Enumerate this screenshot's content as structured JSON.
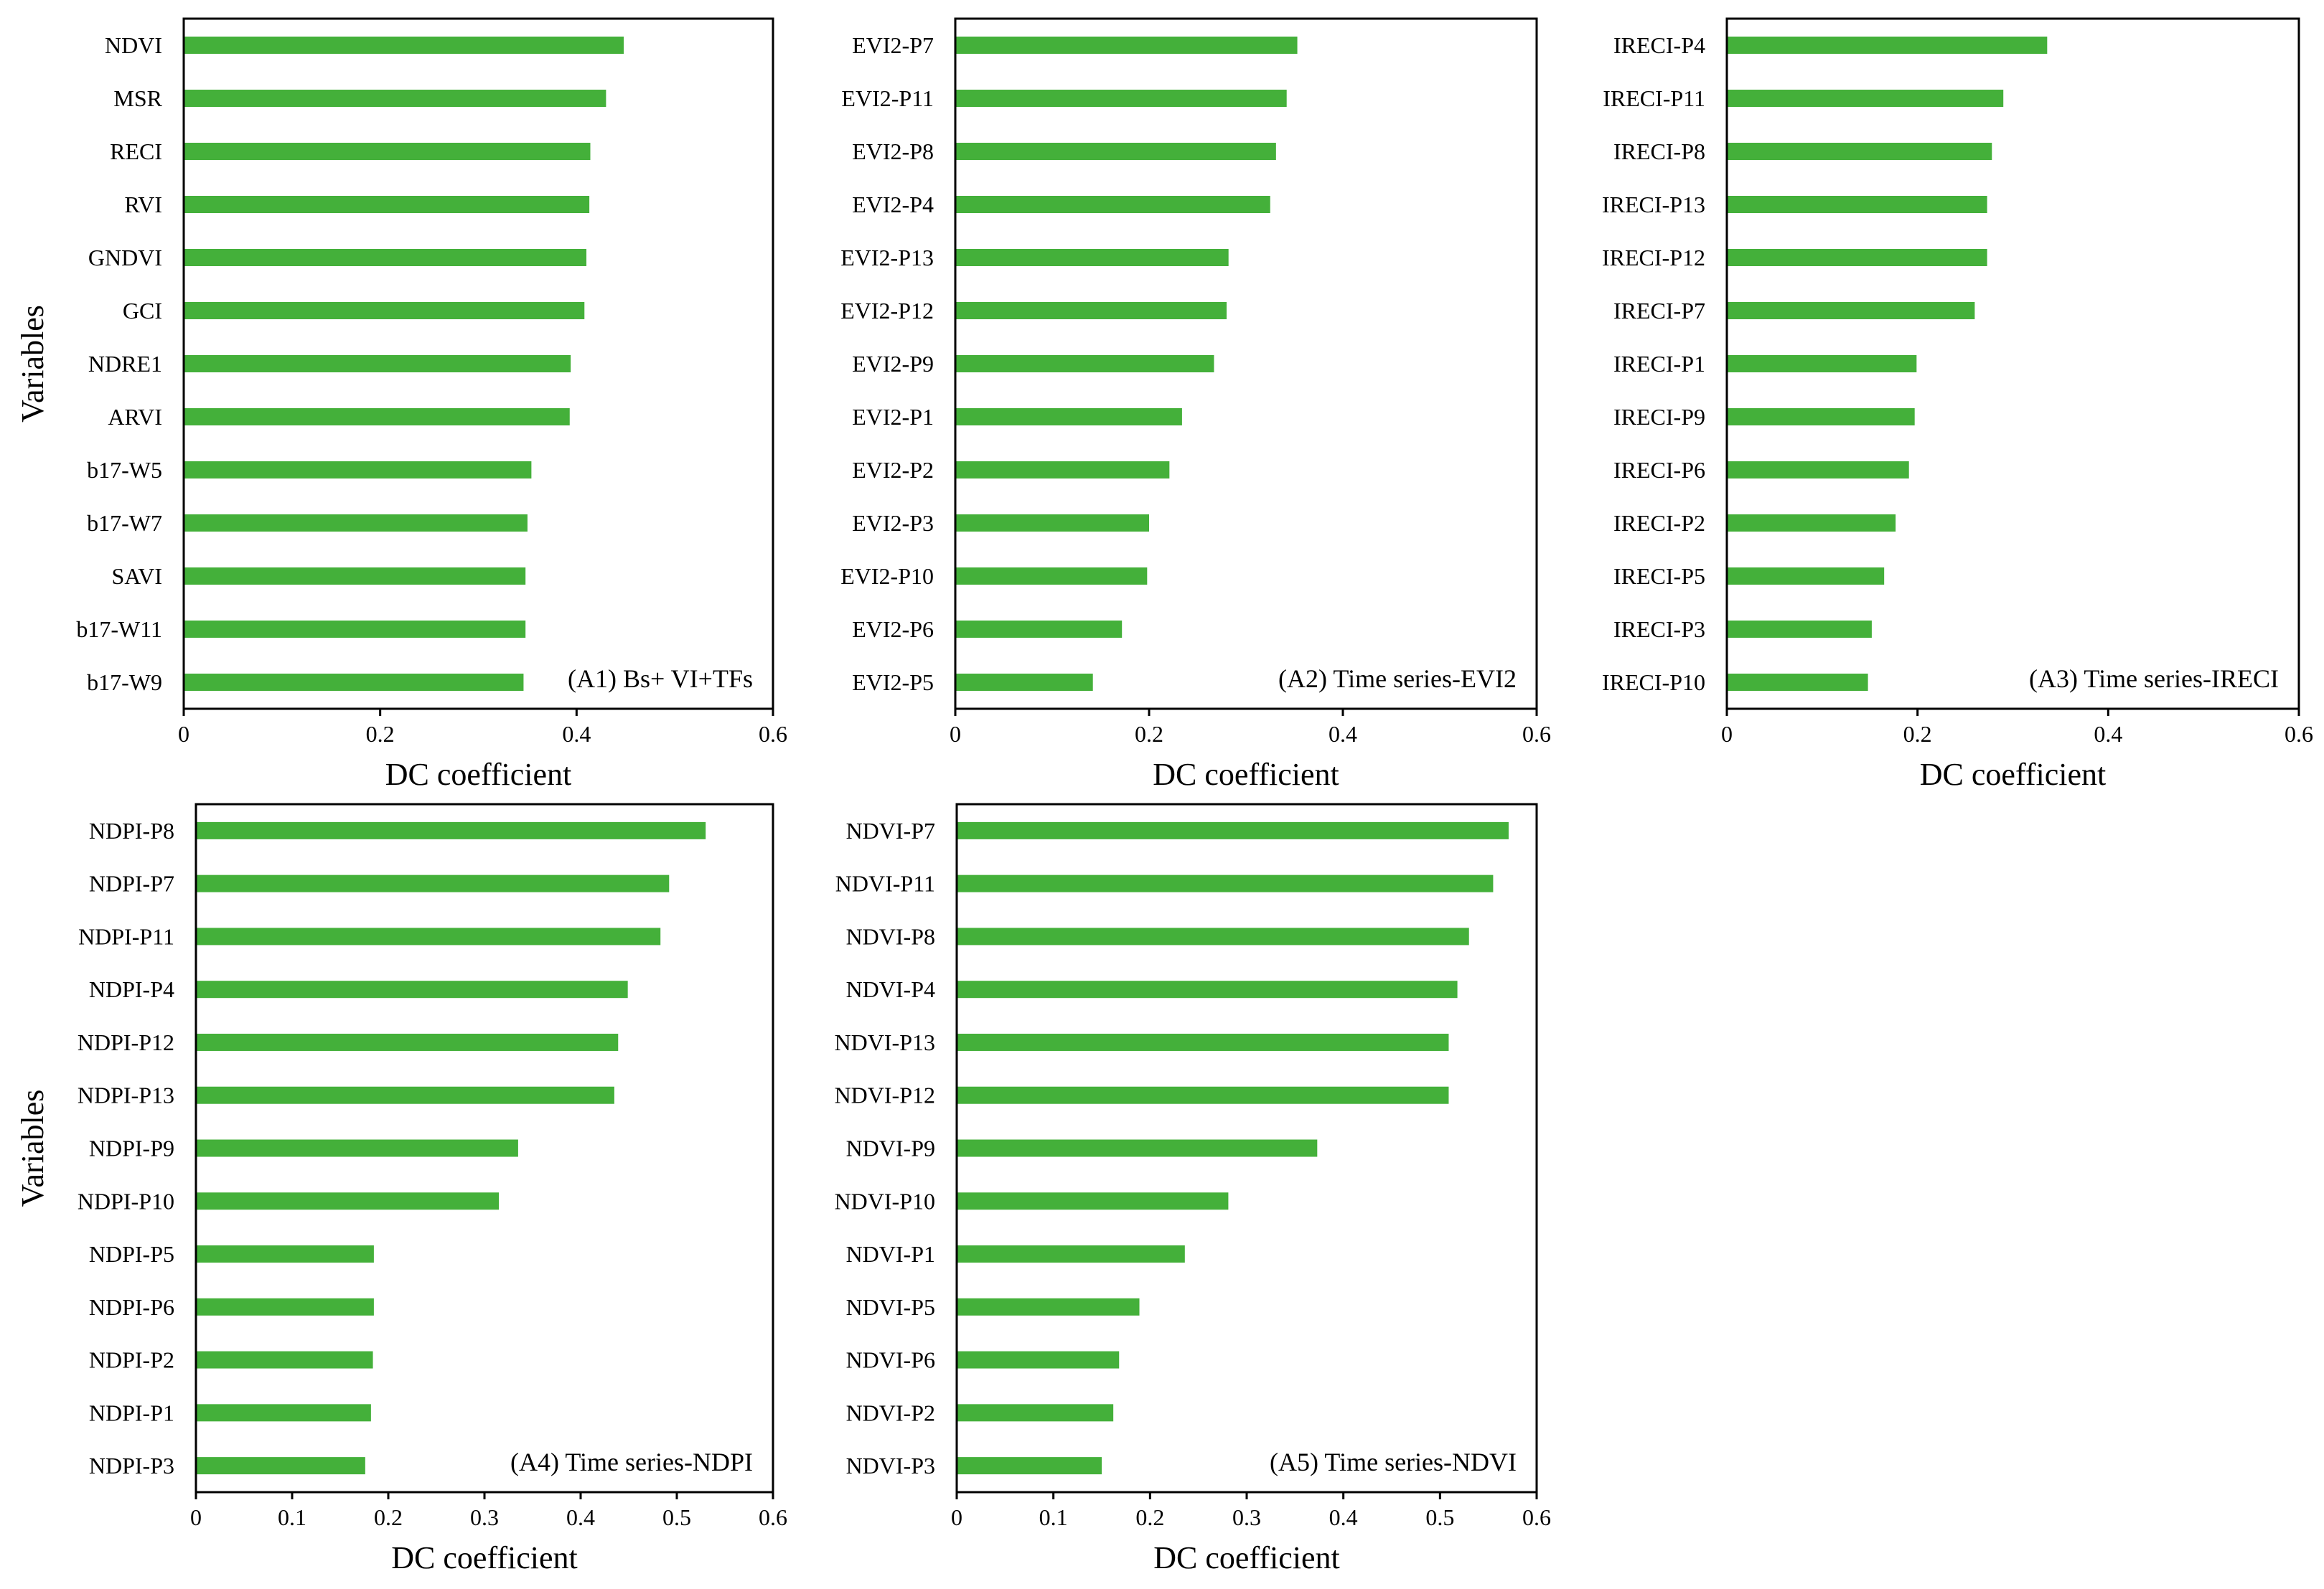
{
  "bar_color": "#44b03a",
  "frame_color": "#000000",
  "chart_data": [
    {
      "type": "bar",
      "orientation": "horizontal",
      "title": "(A1) Bs+ VI+TFs",
      "xlabel": "DC coefficient",
      "ylabel": "Variables",
      "xlim": [
        0,
        0.6
      ],
      "xticks": [
        0,
        0.2,
        0.4,
        0.6
      ],
      "xtick_labels": [
        "0",
        "0.2",
        "0.4",
        "0.6"
      ],
      "categories": [
        "NDVI",
        "MSR",
        "RECI",
        "RVI",
        "GNDVI",
        "GCI",
        "NDRE1",
        "ARVI",
        "b17-W5",
        "b17-W7",
        "SAVI",
        "b17-W11",
        "b17-W9"
      ],
      "values": [
        0.448,
        0.43,
        0.414,
        0.413,
        0.41,
        0.408,
        0.394,
        0.393,
        0.354,
        0.35,
        0.348,
        0.348,
        0.346
      ],
      "grid": false
    },
    {
      "type": "bar",
      "orientation": "horizontal",
      "title": "(A2) Time series-EVI2",
      "xlabel": "DC coefficient",
      "ylabel": "",
      "xlim": [
        0,
        0.6
      ],
      "xticks": [
        0,
        0.2,
        0.4,
        0.6
      ],
      "xtick_labels": [
        "0",
        "0.2",
        "0.4",
        "0.6"
      ],
      "categories": [
        "EVI2-P7",
        "EVI2-P11",
        "EVI2-P8",
        "EVI2-P4",
        "EVI2-P13",
        "EVI2-P12",
        "EVI2-P9",
        "EVI2-P1",
        "EVI2-P2",
        "EVI2-P3",
        "EVI2-P10",
        "EVI2-P6",
        "EVI2-P5"
      ],
      "values": [
        0.353,
        0.342,
        0.331,
        0.325,
        0.282,
        0.28,
        0.267,
        0.234,
        0.221,
        0.2,
        0.198,
        0.172,
        0.142
      ],
      "grid": false
    },
    {
      "type": "bar",
      "orientation": "horizontal",
      "title": "(A3) Time series-IRECI",
      "xlabel": "DC coefficient",
      "ylabel": "",
      "xlim": [
        0,
        0.6
      ],
      "xticks": [
        0,
        0.2,
        0.4,
        0.6
      ],
      "xtick_labels": [
        "0",
        "0.2",
        "0.4",
        "0.6"
      ],
      "categories": [
        "IRECI-P4",
        "IRECI-P11",
        "IRECI-P8",
        "IRECI-P13",
        "IRECI-P12",
        "IRECI-P7",
        "IRECI-P1",
        "IRECI-P9",
        "IRECI-P6",
        "IRECI-P2",
        "IRECI-P5",
        "IRECI-P3",
        "IRECI-P10"
      ],
      "values": [
        0.336,
        0.29,
        0.278,
        0.273,
        0.273,
        0.26,
        0.199,
        0.197,
        0.191,
        0.177,
        0.165,
        0.152,
        0.148
      ],
      "grid": false
    },
    {
      "type": "bar",
      "orientation": "horizontal",
      "title": "(A4) Time series-NDPI",
      "xlabel": "DC coefficient",
      "ylabel": "Variables",
      "xlim": [
        0,
        0.6
      ],
      "xticks": [
        0,
        0.1,
        0.2,
        0.3,
        0.4,
        0.5,
        0.6
      ],
      "xtick_labels": [
        "0",
        "0.1",
        "0.2",
        "0.3",
        "0.4",
        "0.5",
        "0.6"
      ],
      "categories": [
        "NDPI-P8",
        "NDPI-P7",
        "NDPI-P11",
        "NDPI-P4",
        "NDPI-P12",
        "NDPI-P13",
        "NDPI-P9",
        "NDPI-P10",
        "NDPI-P5",
        "NDPI-P6",
        "NDPI-P2",
        "NDPI-P1",
        "NDPI-P3"
      ],
      "values": [
        0.53,
        0.492,
        0.483,
        0.449,
        0.439,
        0.435,
        0.335,
        0.315,
        0.185,
        0.185,
        0.184,
        0.182,
        0.176
      ],
      "grid": false
    },
    {
      "type": "bar",
      "orientation": "horizontal",
      "title": "(A5) Time series-NDVI",
      "xlabel": "DC coefficient",
      "ylabel": "",
      "xlim": [
        0,
        0.6
      ],
      "xticks": [
        0,
        0.1,
        0.2,
        0.3,
        0.4,
        0.5,
        0.6
      ],
      "xtick_labels": [
        "0",
        "0.1",
        "0.2",
        "0.3",
        "0.4",
        "0.5",
        "0.6"
      ],
      "categories": [
        "NDVI-P7",
        "NDVI-P11",
        "NDVI-P8",
        "NDVI-P4",
        "NDVI-P13",
        "NDVI-P12",
        "NDVI-P9",
        "NDVI-P10",
        "NDVI-P1",
        "NDVI-P5",
        "NDVI-P6",
        "NDVI-P2",
        "NDVI-P3"
      ],
      "values": [
        0.571,
        0.555,
        0.53,
        0.518,
        0.509,
        0.509,
        0.373,
        0.281,
        0.236,
        0.189,
        0.168,
        0.162,
        0.15
      ],
      "grid": false
    }
  ]
}
